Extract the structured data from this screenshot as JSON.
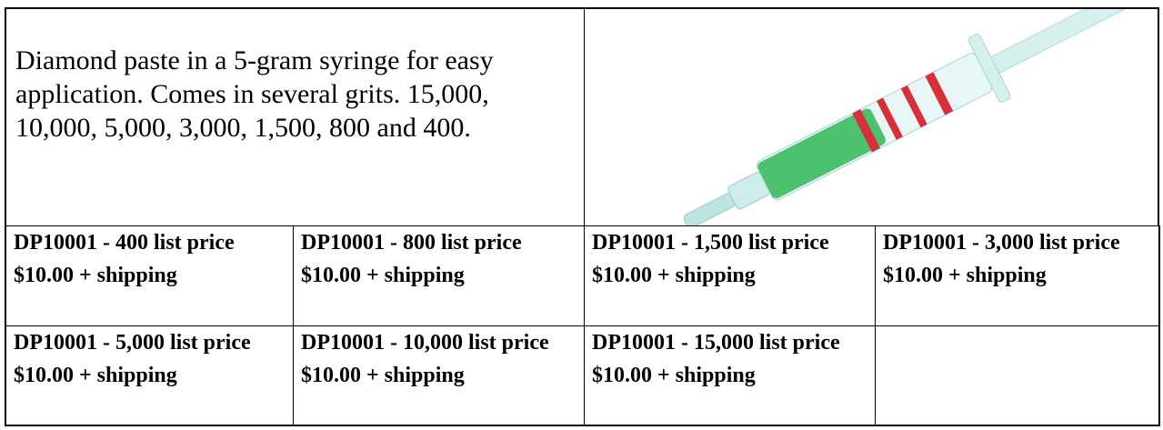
{
  "description": "Diamond paste in a 5-gram syringe for easy application. Comes in several grits. 15,000, 10,000, 5,000, 3,000, 1,500, 800 and 400.",
  "products": [
    [
      "DP10001 - 400 list price $10.00 + shipping",
      "DP10001 - 800 list price $10.00 + shipping",
      "DP10001 - 1,500 list price $10.00 + shipping",
      "DP10001 - 3,000 list price $10.00 + shipping"
    ],
    [
      "DP10001 - 5,000 list price $10.00 + shipping",
      "DP10001 - 10,000 list price $10.00 + shipping",
      "DP10001 - 15,000 list price $10.00 + shipping"
    ]
  ]
}
